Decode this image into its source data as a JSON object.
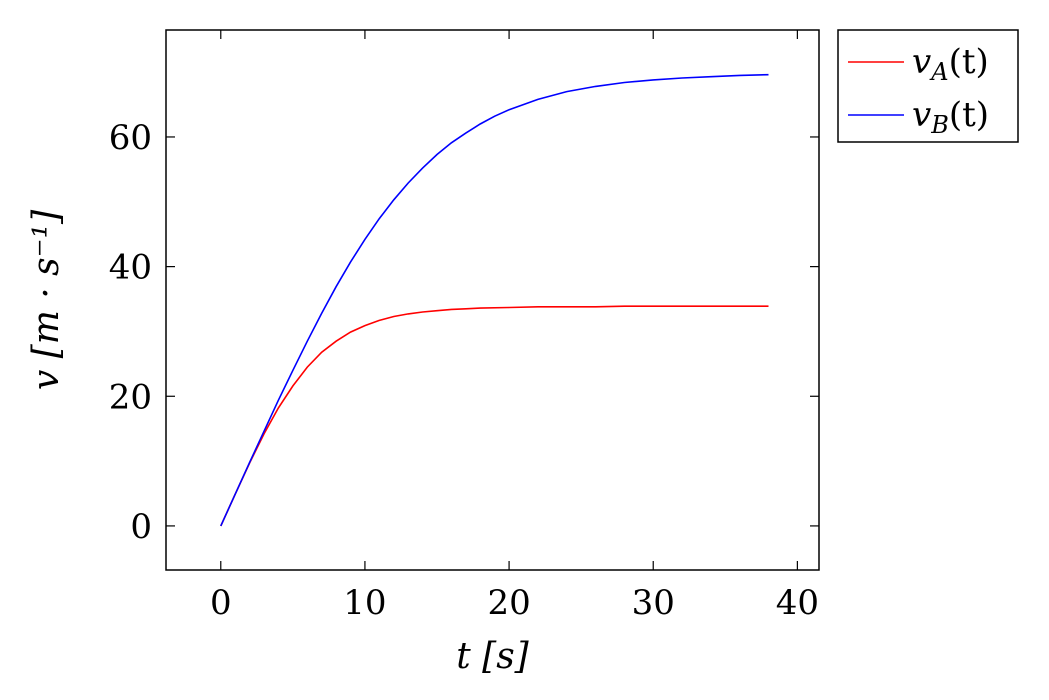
{
  "chart_data": {
    "type": "line",
    "title": "",
    "xlabel": "t [s]",
    "ylabel": "v [m · s⁻¹]",
    "xlim": [
      -3.8,
      41.5
    ],
    "ylim": [
      -6.8,
      76.5
    ],
    "xticks": [
      0,
      10,
      20,
      30,
      40
    ],
    "yticks": [
      0,
      20,
      40,
      60
    ],
    "grid": false,
    "legend_position": "outside-top-right",
    "series": [
      {
        "name": "v_A(t)",
        "legend_main": "v",
        "legend_sub": "A",
        "legend_tail": "(t)",
        "color": "#ff0000",
        "x": [
          0,
          1,
          2,
          3,
          4,
          5,
          6,
          7,
          8,
          9,
          10,
          11,
          12,
          13,
          14,
          15,
          16,
          17,
          18,
          20,
          22,
          24,
          26,
          28,
          30,
          32,
          34,
          36,
          38
        ],
        "y": [
          0,
          4.9,
          9.7,
          14.2,
          18.2,
          21.6,
          24.5,
          26.8,
          28.5,
          29.9,
          30.9,
          31.7,
          32.3,
          32.7,
          33.0,
          33.2,
          33.4,
          33.5,
          33.6,
          33.7,
          33.8,
          33.8,
          33.8,
          33.9,
          33.9,
          33.9,
          33.9,
          33.9,
          33.9
        ]
      },
      {
        "name": "v_B(t)",
        "legend_main": "v",
        "legend_sub": "B",
        "legend_tail": "(t)",
        "color": "#0000ff",
        "x": [
          0,
          1,
          2,
          3,
          4,
          5,
          6,
          7,
          8,
          9,
          10,
          11,
          12,
          13,
          14,
          15,
          16,
          17,
          18,
          19,
          20,
          22,
          24,
          26,
          28,
          30,
          32,
          34,
          36,
          38
        ],
        "y": [
          0,
          4.9,
          9.8,
          14.6,
          19.4,
          24.0,
          28.5,
          32.8,
          36.9,
          40.7,
          44.2,
          47.4,
          50.3,
          52.9,
          55.2,
          57.3,
          59.1,
          60.6,
          62.0,
          63.2,
          64.2,
          65.8,
          67.0,
          67.8,
          68.4,
          68.8,
          69.1,
          69.3,
          69.5,
          69.6
        ]
      }
    ]
  }
}
